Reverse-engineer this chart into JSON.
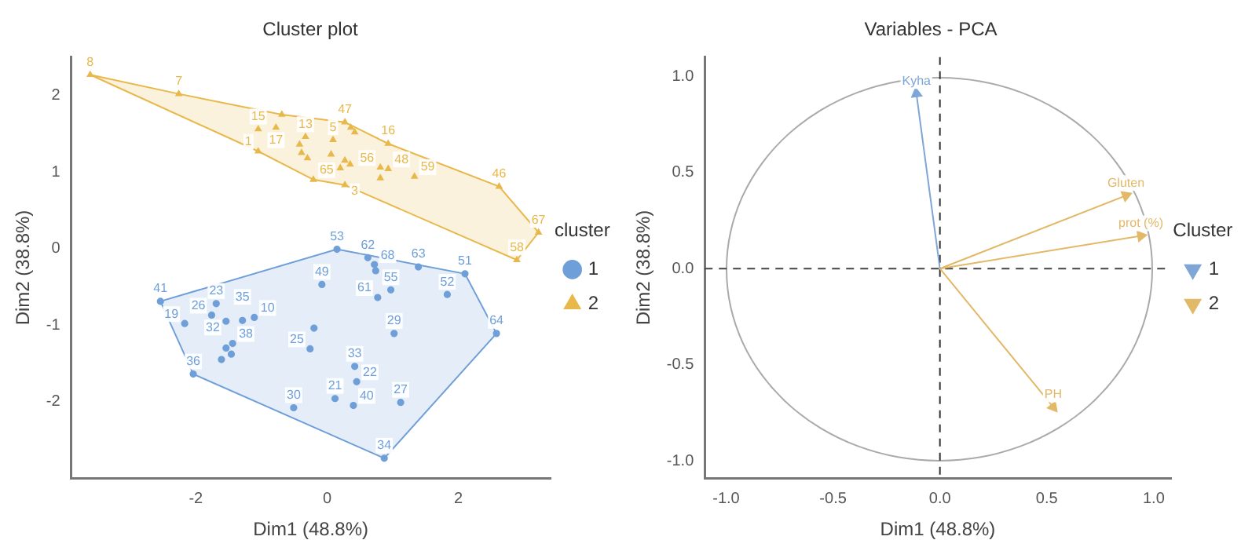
{
  "chart_data": [
    {
      "type": "scatter",
      "title": "Cluster plot",
      "xlabel": "Dim1 (48.8%)",
      "ylabel": "Dim2 (38.8%)",
      "legend_title": "cluster",
      "legend": "right",
      "grid": false,
      "xlim": [
        -3.9,
        3.4
      ],
      "ylim": [
        -3,
        2.5
      ],
      "xticks": [
        -2,
        0,
        2
      ],
      "yticks": [
        -2,
        -1,
        0,
        1,
        2
      ],
      "series": [
        {
          "type": "area",
          "color": "#e8b84a",
          "x": [
            -3.61,
            -2.26,
            -0.69,
            0.27,
            0.93,
            2.62,
            3.22,
            2.89,
            0.27,
            -0.21,
            -1.05,
            -3.61
          ],
          "values": [
            2.27,
            2.02,
            1.75,
            1.65,
            1.37,
            0.81,
            0.21,
            -0.15,
            0.83,
            0.9,
            1.27,
            2.27
          ]
        },
        {
          "type": "area",
          "color": "#6f9fd8",
          "x": [
            -2.54,
            0.15,
            2.1,
            2.58,
            0.87,
            -2.04,
            -2.54
          ],
          "values": [
            -0.69,
            -0.01,
            -0.33,
            -1.11,
            -2.74,
            -1.64,
            -0.69
          ]
        },
        {
          "name": "1",
          "color": "#6f9fd8",
          "marker": "circle",
          "x": [
            0.15,
            0.62,
            0.72,
            0.74,
            1.39,
            2.1,
            -0.08,
            0.97,
            0.77,
            1.83,
            -2.54,
            -1.69,
            -1.76,
            -1.54,
            -1.29,
            -1.11,
            -2.17,
            1.02,
            2.58,
            -0.2,
            -0.26,
            -1.44,
            -1.54,
            -1.61,
            -1.46,
            -2.04,
            0.42,
            0.45,
            0.12,
            0.4,
            1.12,
            -0.51,
            0.87
          ],
          "values": [
            -0.01,
            -0.12,
            -0.21,
            -0.29,
            -0.24,
            -0.33,
            -0.47,
            -0.54,
            -0.64,
            -0.6,
            -0.69,
            -0.72,
            -0.87,
            -0.95,
            -0.94,
            -0.9,
            -0.98,
            -1.11,
            -1.11,
            -1.04,
            -1.31,
            -1.24,
            -1.3,
            -1.45,
            -1.38,
            -1.64,
            -1.54,
            -1.74,
            -1.96,
            -2.05,
            -2.01,
            -2.08,
            -2.74
          ]
        },
        {
          "name": "2",
          "color": "#e8b84a",
          "marker": "triangle",
          "x": [
            -3.61,
            -2.26,
            -1.05,
            -0.78,
            -1.05,
            -0.33,
            -0.42,
            -0.39,
            -0.3,
            -0.21,
            -0.69,
            0.27,
            0.36,
            0.42,
            0.09,
            0.06,
            0.27,
            0.35,
            0.2,
            0.27,
            0.81,
            0.93,
            0.93,
            0.81,
            1.33,
            2.62,
            3.22,
            2.89
          ],
          "values": [
            2.27,
            2.02,
            1.56,
            1.58,
            1.27,
            1.46,
            1.36,
            1.25,
            1.18,
            0.9,
            1.75,
            1.65,
            1.58,
            1.52,
            1.42,
            1.23,
            1.15,
            1.1,
            1.05,
            0.83,
            1.06,
            1.04,
            1.37,
            0.92,
            0.94,
            0.81,
            0.21,
            -0.15
          ]
        }
      ],
      "annotations": [
        {
          "text": "53",
          "x": 0.15,
          "y": -0.01
        },
        {
          "text": "62",
          "x": 0.62,
          "y": -0.12
        },
        {
          "text": "68",
          "x": 0.72,
          "y": -0.21
        },
        {
          "text": "63",
          "x": 1.39,
          "y": -0.24
        },
        {
          "text": "51",
          "x": 2.1,
          "y": -0.33
        },
        {
          "text": "49",
          "x": -0.08,
          "y": -0.47
        },
        {
          "text": "55",
          "x": 0.97,
          "y": -0.54
        },
        {
          "text": "61",
          "x": 0.77,
          "y": -0.64
        },
        {
          "text": "52",
          "x": 1.83,
          "y": -0.6
        },
        {
          "text": "41",
          "x": -2.54,
          "y": -0.69
        },
        {
          "text": "23",
          "x": -1.69,
          "y": -0.72
        },
        {
          "text": "26",
          "x": -1.76,
          "y": -0.87
        },
        {
          "text": "32",
          "x": -1.54,
          "y": -0.95
        },
        {
          "text": "35",
          "x": -1.29,
          "y": -0.94
        },
        {
          "text": "10",
          "x": -1.11,
          "y": -0.9
        },
        {
          "text": "19",
          "x": -2.17,
          "y": -0.98
        },
        {
          "text": "29",
          "x": 1.02,
          "y": -1.11
        },
        {
          "text": "64",
          "x": 2.58,
          "y": -1.11
        },
        {
          "text": "25",
          "x": -0.26,
          "y": -1.31
        },
        {
          "text": "38",
          "x": -1.44,
          "y": -1.24
        },
        {
          "text": "36",
          "x": -2.04,
          "y": -1.64
        },
        {
          "text": "33",
          "x": 0.42,
          "y": -1.54
        },
        {
          "text": "22",
          "x": 0.45,
          "y": -1.74
        },
        {
          "text": "21",
          "x": 0.12,
          "y": -1.96
        },
        {
          "text": "40",
          "x": 0.4,
          "y": -2.05
        },
        {
          "text": "27",
          "x": 1.12,
          "y": -2.01
        },
        {
          "text": "30",
          "x": -0.51,
          "y": -2.08
        },
        {
          "text": "34",
          "x": 0.87,
          "y": -2.74
        },
        {
          "text": "8",
          "x": -3.61,
          "y": 2.27
        },
        {
          "text": "7",
          "x": -2.26,
          "y": 2.02
        },
        {
          "text": "15",
          "x": -1.05,
          "y": 1.56
        },
        {
          "text": "17",
          "x": -0.78,
          "y": 1.58
        },
        {
          "text": "1",
          "x": -1.05,
          "y": 1.27
        },
        {
          "text": "13",
          "x": -0.33,
          "y": 1.46
        },
        {
          "text": "65",
          "x": -0.21,
          "y": 0.9
        },
        {
          "text": "47",
          "x": 0.27,
          "y": 1.65
        },
        {
          "text": "5",
          "x": 0.09,
          "y": 1.42
        },
        {
          "text": "3",
          "x": 0.27,
          "y": 0.83
        },
        {
          "text": "56",
          "x": 0.81,
          "y": 1.06
        },
        {
          "text": "48",
          "x": 0.93,
          "y": 1.04
        },
        {
          "text": "16",
          "x": 0.93,
          "y": 1.37
        },
        {
          "text": "59",
          "x": 1.33,
          "y": 0.94
        },
        {
          "text": "46",
          "x": 2.62,
          "y": 0.81
        },
        {
          "text": "67",
          "x": 3.22,
          "y": 0.21
        },
        {
          "text": "58",
          "x": 2.89,
          "y": -0.15
        }
      ]
    },
    {
      "type": "line",
      "title": "Variables - PCA",
      "xlabel": "Dim1 (48.8%)",
      "ylabel": "Dim2 (38.8%)",
      "legend_title": "Cluster",
      "legend": "right",
      "grid": false,
      "marker": "triangle",
      "xlim": [
        -1.1,
        1.08
      ],
      "ylim": [
        -1.09,
        1.1
      ],
      "xticks": [
        {
          "value": -1,
          "label": "-1.0"
        },
        -0.5,
        {
          "value": 0,
          "label": "0.0"
        },
        0.5,
        {
          "value": 1,
          "label": "1.0"
        }
      ],
      "yticks": [
        {
          "value": -1,
          "label": "-1.0"
        },
        -0.5,
        {
          "value": 0,
          "label": "0.0"
        },
        0.5,
        {
          "value": 1,
          "label": "1.0"
        }
      ],
      "ref_lines": [
        {
          "axis": "x",
          "value": 0,
          "line_style": "dashed",
          "color": "#333333"
        },
        {
          "axis": "y",
          "value": 0,
          "line_style": "dashed",
          "color": "#444444"
        }
      ],
      "series": [
        {
          "name": "1",
          "color": "#7fa6d6",
          "x": [
            0,
            -0.11
          ],
          "values": [
            0,
            0.91
          ]
        },
        {
          "name": "2",
          "color": "#e2b968",
          "x": [
            0,
            0.87,
            0,
            0.94,
            0,
            0.53
          ],
          "values": [
            0,
            0.38,
            0,
            0.17,
            0,
            -0.72
          ]
        }
      ],
      "annotations": [
        {
          "text": "Kyha",
          "x": -0.11,
          "y": 0.91
        },
        {
          "text": "Gluten",
          "x": 0.87,
          "y": 0.38
        },
        {
          "text": "prot (%)",
          "x": 0.94,
          "y": 0.17
        },
        {
          "text": "PH",
          "x": 0.53,
          "y": -0.72
        }
      ]
    }
  ]
}
